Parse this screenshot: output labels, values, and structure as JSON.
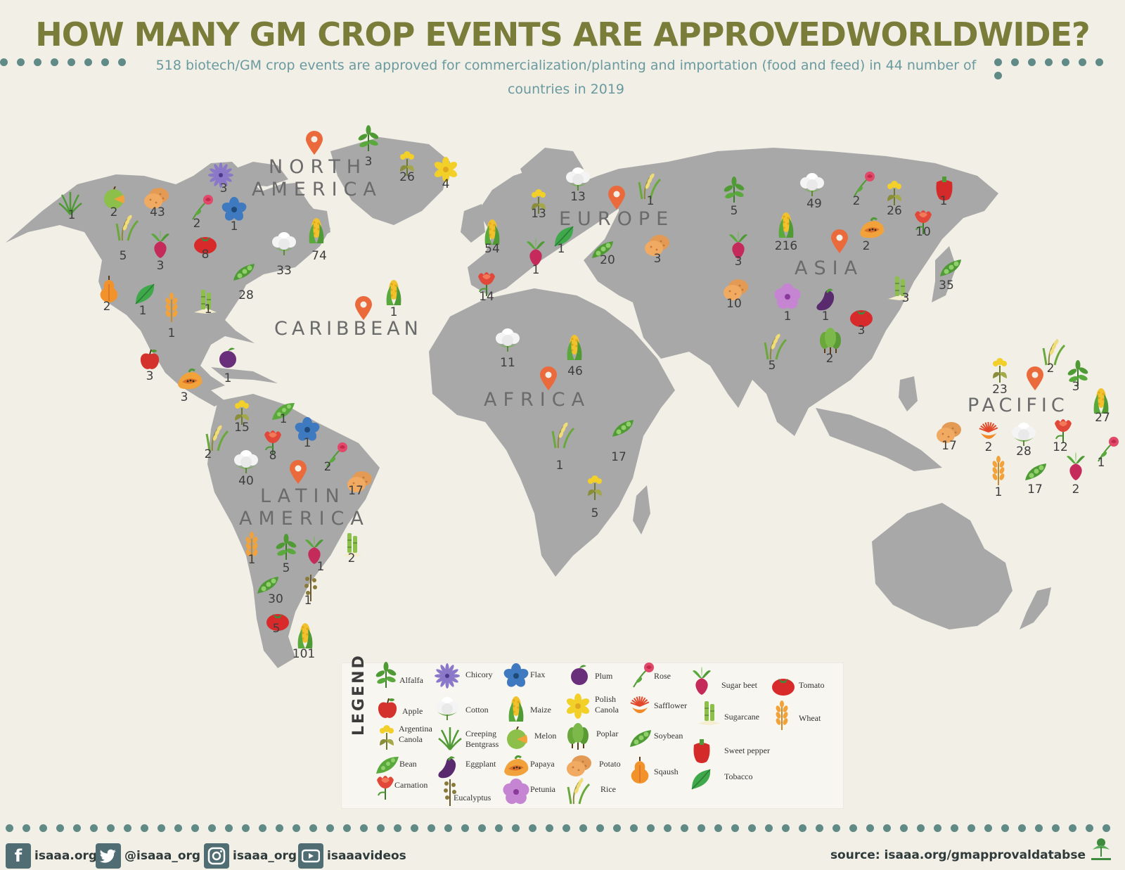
{
  "title": "HOW MANY GM CROP EVENTS ARE APPROVEDWORLDWIDE?",
  "subtitle_line1": "518 biotech/GM crop events are approved for commercialization/planting and importation (food and feed) in 44 number of",
  "subtitle_line2": "countries in 2019",
  "regions": {
    "north_america": [
      "NORTH",
      "AMERICA"
    ],
    "europe": "EUROPE",
    "caribbean": "CARIBBEAN",
    "asia": "ASIA",
    "africa": "AFRICA",
    "pacific": "PACIFIC",
    "latin_america": [
      "LATIN",
      "AMERICA"
    ]
  },
  "north_america_events": [
    {
      "crop": "creeping-bentgrass",
      "count": "1"
    },
    {
      "crop": "melon",
      "count": "2"
    },
    {
      "crop": "potato",
      "count": "43"
    },
    {
      "crop": "rose",
      "count": "2"
    },
    {
      "crop": "flax",
      "count": "1"
    },
    {
      "crop": "chicory",
      "count": "3"
    },
    {
      "crop": "alfalfa",
      "count": "3"
    },
    {
      "crop": "argentina-canola",
      "count": "26"
    },
    {
      "crop": "polish-canola",
      "count": "4"
    },
    {
      "crop": "rice",
      "count": "5"
    },
    {
      "crop": "sugar-beet",
      "count": "3"
    },
    {
      "crop": "tomato",
      "count": "8"
    },
    {
      "crop": "cotton",
      "count": "33"
    },
    {
      "crop": "maize",
      "count": "74"
    },
    {
      "crop": "squash",
      "count": "2"
    },
    {
      "crop": "tobacco",
      "count": "1"
    },
    {
      "crop": "wheat",
      "count": "1"
    },
    {
      "crop": "sugarcane",
      "count": "1"
    },
    {
      "crop": "soybean",
      "count": "28"
    },
    {
      "crop": "apple",
      "count": "3"
    },
    {
      "crop": "plum",
      "count": "1"
    },
    {
      "crop": "papaya",
      "count": "3"
    }
  ],
  "caribbean_events": [
    {
      "crop": "maize",
      "count": "1"
    }
  ],
  "europe_events": [
    {
      "crop": "maize",
      "count": "54"
    },
    {
      "crop": "argentina-canola",
      "count": "13"
    },
    {
      "crop": "cotton",
      "count": "13"
    },
    {
      "crop": "rice",
      "count": "1"
    },
    {
      "crop": "sugar-beet",
      "count": "1"
    },
    {
      "crop": "tobacco",
      "count": "1"
    },
    {
      "crop": "soybean",
      "count": "20"
    },
    {
      "crop": "potato",
      "count": "3"
    },
    {
      "crop": "carnation",
      "count": "14"
    }
  ],
  "africa_events": [
    {
      "crop": "cotton",
      "count": "11"
    },
    {
      "crop": "maize",
      "count": "46"
    },
    {
      "crop": "rice",
      "count": "1"
    },
    {
      "crop": "soybean",
      "count": "17"
    },
    {
      "crop": "argentina-canola",
      "count": "5"
    }
  ],
  "asia_events": [
    {
      "crop": "alfalfa",
      "count": "5"
    },
    {
      "crop": "cotton",
      "count": "49"
    },
    {
      "crop": "rose",
      "count": "2"
    },
    {
      "crop": "argentina-canola",
      "count": "26"
    },
    {
      "crop": "sweet-pepper",
      "count": "1"
    },
    {
      "crop": "maize",
      "count": "216"
    },
    {
      "crop": "papaya",
      "count": "2"
    },
    {
      "crop": "carnation",
      "count": "10"
    },
    {
      "crop": "sugar-beet",
      "count": "3"
    },
    {
      "crop": "potato",
      "count": "10"
    },
    {
      "crop": "petunia",
      "count": "1"
    },
    {
      "crop": "eggplant",
      "count": "1"
    },
    {
      "crop": "tomato",
      "count": "3"
    },
    {
      "crop": "sugarcane",
      "count": "3"
    },
    {
      "crop": "soybean",
      "count": "35"
    },
    {
      "crop": "rice",
      "count": "5"
    },
    {
      "crop": "poplar",
      "count": "2"
    }
  ],
  "pacific_events": [
    {
      "crop": "argentina-canola",
      "count": "23"
    },
    {
      "crop": "rice",
      "count": "2"
    },
    {
      "crop": "alfalfa",
      "count": "3"
    },
    {
      "crop": "maize",
      "count": "27"
    },
    {
      "crop": "potato",
      "count": "17"
    },
    {
      "crop": "safflower",
      "count": "2"
    },
    {
      "crop": "cotton",
      "count": "28"
    },
    {
      "crop": "carnation",
      "count": "12"
    },
    {
      "crop": "rose",
      "count": "1"
    },
    {
      "crop": "wheat",
      "count": "1"
    },
    {
      "crop": "soybean",
      "count": "17"
    },
    {
      "crop": "sugar-beet",
      "count": "2"
    }
  ],
  "latin_america_events": [
    {
      "crop": "argentina-canola",
      "count": "15"
    },
    {
      "crop": "bean",
      "count": "1"
    },
    {
      "crop": "flax",
      "count": "1"
    },
    {
      "crop": "rice",
      "count": "2"
    },
    {
      "crop": "carnation",
      "count": "8"
    },
    {
      "crop": "rose",
      "count": "2"
    },
    {
      "crop": "cotton",
      "count": "40"
    },
    {
      "crop": "potato",
      "count": "17"
    },
    {
      "crop": "wheat",
      "count": "1"
    },
    {
      "crop": "alfalfa",
      "count": "5"
    },
    {
      "crop": "sugar-beet",
      "count": "1"
    },
    {
      "crop": "sugarcane",
      "count": "2"
    },
    {
      "crop": "soybean",
      "count": "30"
    },
    {
      "crop": "eucalyptus",
      "count": "1"
    },
    {
      "crop": "tomato",
      "count": "5"
    },
    {
      "crop": "maize",
      "count": "101"
    }
  ],
  "legend": {
    "title": "LEGEND",
    "items": [
      {
        "icon": "alfalfa",
        "label": "Alfalfa"
      },
      {
        "icon": "apple",
        "label": "Apple"
      },
      {
        "icon": "argentina-canola",
        "label": "Argentina Canola"
      },
      {
        "icon": "bean",
        "label": "Bean"
      },
      {
        "icon": "carnation",
        "label": "Carnation"
      },
      {
        "icon": "chicory",
        "label": "Chicory"
      },
      {
        "icon": "cotton",
        "label": "Cotton"
      },
      {
        "icon": "creeping-bentgrass",
        "label": "Creeping Bentgrass"
      },
      {
        "icon": "eggplant",
        "label": "Eggplant"
      },
      {
        "icon": "eucalyptus",
        "label": "Eucalyptus"
      },
      {
        "icon": "flax",
        "label": "Flax"
      },
      {
        "icon": "maize",
        "label": "Maize"
      },
      {
        "icon": "melon",
        "label": "Melon"
      },
      {
        "icon": "papaya",
        "label": "Papaya"
      },
      {
        "icon": "petunia",
        "label": "Petunia"
      },
      {
        "icon": "plum",
        "label": "Plum"
      },
      {
        "icon": "polish-canola",
        "label": "Polish Canola"
      },
      {
        "icon": "poplar",
        "label": "Poplar"
      },
      {
        "icon": "potato",
        "label": "Potato"
      },
      {
        "icon": "rice",
        "label": "Rice"
      },
      {
        "icon": "rose",
        "label": "Rose"
      },
      {
        "icon": "safflower",
        "label": "Safflower"
      },
      {
        "icon": "soybean",
        "label": "Soybean"
      },
      {
        "icon": "squash",
        "label": "Sqaush"
      },
      {
        "icon": "sugar-beet",
        "label": "Sugar beet"
      },
      {
        "icon": "sugarcane",
        "label": "Sugarcane"
      },
      {
        "icon": "sweet-pepper",
        "label": "Sweet pepper"
      },
      {
        "icon": "tobacco",
        "label": "Tobacco"
      },
      {
        "icon": "tomato",
        "label": "Tomato"
      },
      {
        "icon": "wheat",
        "label": "Wheat"
      }
    ]
  },
  "footer": {
    "facebook": "isaaa.org",
    "twitter": "@isaaa_org",
    "instagram": "isaaa_org",
    "youtube": "isaaavideos",
    "source": "source: isaaa.org/gmapprovaldatabse"
  },
  "colors": {
    "title": "#7a7c3a",
    "subtitle": "#6a9aa0",
    "land": "#a8a8a8",
    "background": "#f1efe6",
    "pin": "#ea6a3c",
    "dots": "#5f8a86"
  }
}
